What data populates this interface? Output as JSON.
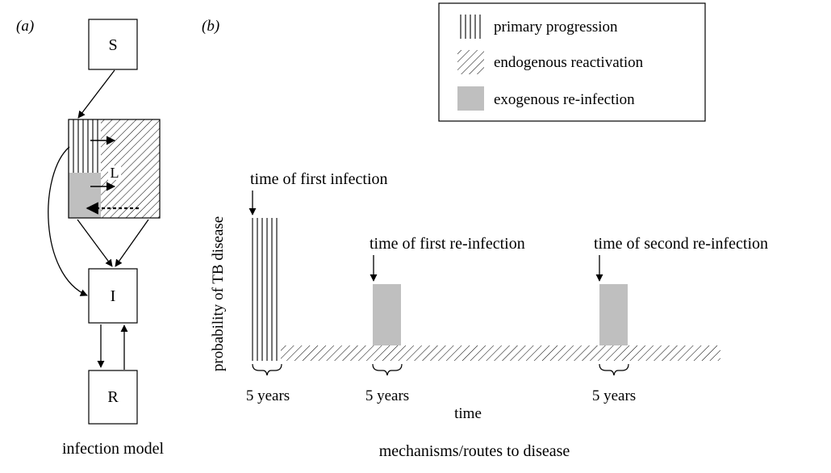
{
  "panel_a": {
    "label": "(a)",
    "caption": "infection model",
    "nodes": {
      "susceptible": "S",
      "latent": "L",
      "infectious": "I",
      "recovered": "R"
    }
  },
  "panel_b": {
    "label": "(b)",
    "caption": "mechanisms/routes to disease",
    "x_axis_label": "time",
    "y_axis_label": "probability of TB disease",
    "legend": {
      "primary": "primary progression",
      "endogenous": "endogenous reactivation",
      "exogenous": "exogenous re-infection"
    },
    "annotations": {
      "first_infection": "time of first infection",
      "first_reinfection": "time of first re-infection",
      "second_reinfection": "time of second re-infection"
    },
    "durations": [
      "5 years",
      "5 years",
      "5 years"
    ]
  },
  "colors": {
    "ink": "#000000",
    "reinfection_fill": "#bfbfbf"
  }
}
